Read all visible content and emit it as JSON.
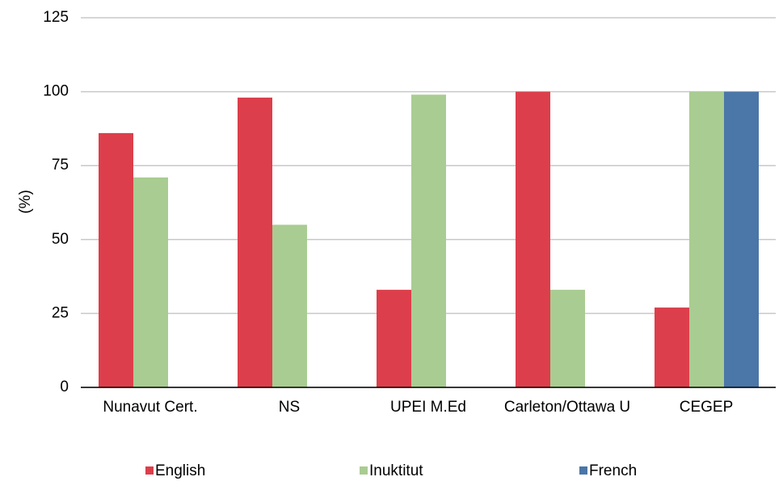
{
  "chart_data": {
    "type": "bar",
    "y_label": "(%)",
    "categories": [
      "Nunavut Cert.",
      "NS",
      "UPEI M.Ed",
      "Carleton/Ottawa U",
      "CEGEP"
    ],
    "series": [
      {
        "name": "English",
        "color": "#dc3f4b",
        "values": [
          86,
          98,
          33,
          100,
          27
        ]
      },
      {
        "name": "Inuktitut",
        "color": "#a9cc92",
        "values": [
          71,
          55,
          99,
          33,
          100
        ]
      },
      {
        "name": "French",
        "color": "#4a76a8",
        "values": [
          null,
          null,
          null,
          null,
          100
        ]
      }
    ],
    "ylim": [
      0,
      125
    ],
    "yticks": [
      0,
      25,
      50,
      75,
      100,
      125
    ],
    "grid": true,
    "legend": "bottom"
  }
}
